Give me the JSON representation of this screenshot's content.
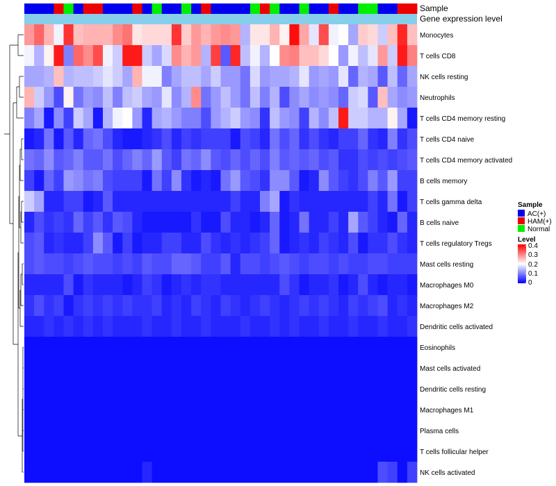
{
  "chart_data": {
    "type": "heatmap",
    "title": "",
    "annotations": {
      "sample_label": "Sample",
      "gene_label": "Gene expression level",
      "sample_groups": [
        "AC(+)",
        "AC(+)",
        "AC(+)",
        "HAM(+)",
        "Normal",
        "AC(+)",
        "HAM(+)",
        "HAM(+)",
        "AC(+)",
        "AC(+)",
        "AC(+)",
        "HAM(+)",
        "AC(+)",
        "Normal",
        "AC(+)",
        "AC(+)",
        "Normal",
        "AC(+)",
        "HAM(+)",
        "AC(+)",
        "AC(+)",
        "AC(+)",
        "AC(+)",
        "Normal",
        "HAM(+)",
        "Normal",
        "AC(+)",
        "AC(+)",
        "Normal",
        "AC(+)",
        "AC(+)",
        "HAM(+)",
        "AC(+)",
        "AC(+)",
        "Normal",
        "Normal",
        "AC(+)",
        "AC(+)",
        "HAM(+)",
        "HAM(+)"
      ]
    },
    "rows": [
      "Monocytes",
      "T cells CD8",
      "NK cells resting",
      "Neutrophils",
      "T cells CD4 memory resting",
      "T cells CD4 naive",
      "T cells CD4 memory activated",
      "B cells memory",
      "T cells gamma delta",
      "B cells naive",
      "T cells regulatory  Tregs",
      "Mast cells resting",
      "Macrophages M0",
      "Macrophages M2",
      "Dendritic cells activated",
      "Eosinophils",
      "Mast cells activated",
      "Dendritic cells resting",
      "Macrophages M1",
      "Plasma cells",
      "T cells follicular helper",
      "NK cells activated"
    ],
    "legend": {
      "sample_title": "Sample",
      "groups": [
        {
          "label": "AC(+)",
          "color": "#0000ee"
        },
        {
          "label": "HAM(+)",
          "color": "#ee0000"
        },
        {
          "label": "Normal",
          "color": "#00ee00"
        }
      ],
      "level_title": "Level",
      "level_ticks": [
        "0.4",
        "0.3",
        "0.2",
        "0.1",
        "0"
      ],
      "range": [
        0,
        0.4
      ]
    },
    "colors": {
      "low": "#0000ff",
      "mid": "#ffffff",
      "high": "#ff0000",
      "gene_bar": "#87ceeb"
    },
    "values": [
      [
        0.28,
        0.32,
        0.26,
        0.19,
        0.36,
        0.25,
        0.26,
        0.26,
        0.26,
        0.29,
        0.31,
        0.22,
        0.23,
        0.23,
        0.23,
        0.36,
        0.24,
        0.28,
        0.26,
        0.28,
        0.29,
        0.28,
        0.14,
        0.22,
        0.22,
        0.26,
        0.21,
        0.39,
        0.27,
        0.18,
        0.34,
        0.19,
        0.2,
        0.13,
        0.24,
        0.23,
        0.16,
        0.25,
        0.37,
        0.25
      ],
      [
        0.19,
        0.14,
        0.21,
        0.38,
        0.1,
        0.32,
        0.29,
        0.34,
        0.19,
        0.16,
        0.38,
        0.38,
        0.16,
        0.13,
        0.17,
        0.29,
        0.26,
        0.28,
        0.14,
        0.35,
        0.07,
        0.37,
        0.15,
        0.19,
        0.14,
        0.2,
        0.29,
        0.3,
        0.25,
        0.25,
        0.23,
        0.2,
        0.12,
        0.19,
        0.15,
        0.18,
        0.28,
        0.16,
        0.38,
        0.3
      ],
      [
        0.13,
        0.13,
        0.14,
        0.25,
        0.14,
        0.15,
        0.15,
        0.16,
        0.18,
        0.16,
        0.13,
        0.26,
        0.19,
        0.19,
        0.1,
        0.13,
        0.15,
        0.15,
        0.13,
        0.16,
        0.12,
        0.12,
        0.09,
        0.17,
        0.12,
        0.13,
        0.13,
        0.14,
        0.18,
        0.12,
        0.13,
        0.12,
        0.18,
        0.08,
        0.14,
        0.13,
        0.07,
        0.15,
        0.08,
        0.13
      ],
      [
        0.26,
        0.16,
        0.12,
        0.06,
        0.21,
        0.09,
        0.12,
        0.11,
        0.15,
        0.1,
        0.15,
        0.16,
        0.13,
        0.12,
        0.18,
        0.11,
        0.14,
        0.29,
        0.09,
        0.12,
        0.15,
        0.12,
        0.09,
        0.15,
        0.1,
        0.14,
        0.06,
        0.11,
        0.13,
        0.11,
        0.12,
        0.11,
        0.08,
        0.16,
        0.17,
        0.07,
        0.25,
        0.13,
        0.11,
        0.12
      ],
      [
        0.1,
        0.13,
        0.02,
        0.11,
        0.05,
        0.16,
        0.13,
        0.02,
        0.14,
        0.19,
        0.2,
        0.12,
        0.03,
        0.13,
        0.14,
        0.12,
        0.1,
        0.1,
        0.06,
        0.12,
        0.14,
        0.16,
        0.12,
        0.11,
        0.04,
        0.15,
        0.12,
        0.11,
        0.05,
        0.14,
        0.11,
        0.15,
        0.38,
        0.16,
        0.16,
        0.14,
        0.14,
        0.21,
        0.13,
        0.02
      ],
      [
        0.02,
        0.03,
        0.09,
        0.02,
        0.07,
        0.03,
        0.08,
        0.09,
        0.06,
        0.03,
        0.02,
        0.02,
        0.03,
        0.04,
        0.06,
        0.03,
        0.05,
        0.04,
        0.05,
        0.05,
        0.05,
        0.02,
        0.06,
        0.05,
        0.03,
        0.09,
        0.06,
        0.08,
        0.04,
        0.06,
        0.04,
        0.03,
        0.05,
        0.05,
        0.08,
        0.04,
        0.03,
        0.1,
        0.04,
        0.06
      ],
      [
        0.09,
        0.08,
        0.11,
        0.07,
        0.08,
        0.1,
        0.07,
        0.07,
        0.09,
        0.06,
        0.08,
        0.1,
        0.08,
        0.12,
        0.07,
        0.05,
        0.09,
        0.08,
        0.11,
        0.07,
        0.06,
        0.08,
        0.06,
        0.08,
        0.06,
        0.1,
        0.07,
        0.08,
        0.07,
        0.08,
        0.06,
        0.07,
        0.04,
        0.04,
        0.06,
        0.05,
        0.06,
        0.05,
        0.06,
        0.07
      ],
      [
        0.05,
        0.02,
        0.08,
        0.05,
        0.12,
        0.11,
        0.09,
        0.1,
        0.06,
        0.05,
        0.05,
        0.05,
        0.02,
        0.09,
        0.05,
        0.11,
        0.04,
        0.02,
        0.03,
        0.02,
        0.09,
        0.12,
        0.07,
        0.06,
        0.04,
        0.11,
        0.11,
        0.07,
        0.02,
        0.03,
        0.11,
        0.07,
        0.05,
        0.04,
        0.06,
        0.1,
        0.07,
        0.12,
        0.05,
        0.05
      ],
      [
        0.16,
        0.13,
        0.03,
        0.03,
        0.05,
        0.05,
        0.02,
        0.03,
        0.07,
        0.03,
        0.03,
        0.03,
        0.03,
        0.03,
        0.03,
        0.03,
        0.03,
        0.03,
        0.03,
        0.03,
        0.03,
        0.05,
        0.03,
        0.03,
        0.1,
        0.13,
        0.02,
        0.04,
        0.03,
        0.03,
        0.03,
        0.03,
        0.03,
        0.03,
        0.03,
        0.05,
        0.03,
        0.09,
        0.02,
        0.05
      ],
      [
        0.03,
        0.06,
        0.04,
        0.05,
        0.04,
        0.08,
        0.05,
        0.07,
        0.04,
        0.07,
        0.06,
        0.03,
        0.02,
        0.02,
        0.02,
        0.02,
        0.02,
        0.04,
        0.02,
        0.02,
        0.06,
        0.03,
        0.03,
        0.02,
        0.03,
        0.08,
        0.02,
        0.03,
        0.09,
        0.03,
        0.03,
        0.05,
        0.03,
        0.13,
        0.07,
        0.05,
        0.03,
        0.02,
        0.08,
        0.03
      ],
      [
        0.06,
        0.07,
        0.03,
        0.04,
        0.03,
        0.03,
        0.05,
        0.11,
        0.07,
        0.02,
        0.05,
        0.02,
        0.03,
        0.03,
        0.05,
        0.05,
        0.03,
        0.03,
        0.06,
        0.04,
        0.03,
        0.04,
        0.03,
        0.04,
        0.05,
        0.08,
        0.02,
        0.03,
        0.04,
        0.03,
        0.05,
        0.04,
        0.03,
        0.06,
        0.02,
        0.04,
        0.04,
        0.06,
        0.04,
        0.03
      ],
      [
        0.06,
        0.07,
        0.06,
        0.06,
        0.05,
        0.06,
        0.07,
        0.06,
        0.06,
        0.05,
        0.06,
        0.05,
        0.07,
        0.06,
        0.06,
        0.08,
        0.08,
        0.07,
        0.05,
        0.05,
        0.07,
        0.03,
        0.06,
        0.06,
        0.05,
        0.06,
        0.07,
        0.06,
        0.05,
        0.06,
        0.06,
        0.05,
        0.06,
        0.05,
        0.05,
        0.06,
        0.06,
        0.05,
        0.05,
        0.05
      ],
      [
        0.03,
        0.03,
        0.03,
        0.03,
        0.06,
        0.02,
        0.04,
        0.03,
        0.03,
        0.03,
        0.02,
        0.03,
        0.05,
        0.04,
        0.02,
        0.03,
        0.04,
        0.03,
        0.04,
        0.04,
        0.03,
        0.03,
        0.03,
        0.03,
        0.03,
        0.03,
        0.06,
        0.04,
        0.02,
        0.03,
        0.03,
        0.04,
        0.02,
        0.03,
        0.06,
        0.03,
        0.02,
        0.03,
        0.03,
        0.02
      ],
      [
        0.04,
        0.06,
        0.04,
        0.05,
        0.02,
        0.04,
        0.05,
        0.04,
        0.05,
        0.04,
        0.05,
        0.04,
        0.04,
        0.05,
        0.03,
        0.04,
        0.03,
        0.05,
        0.04,
        0.03,
        0.05,
        0.04,
        0.03,
        0.04,
        0.05,
        0.04,
        0.03,
        0.04,
        0.05,
        0.04,
        0.05,
        0.04,
        0.03,
        0.05,
        0.04,
        0.05,
        0.06,
        0.03,
        0.04,
        0.03
      ],
      [
        0.03,
        0.03,
        0.04,
        0.03,
        0.04,
        0.03,
        0.04,
        0.03,
        0.04,
        0.03,
        0.03,
        0.03,
        0.04,
        0.03,
        0.03,
        0.04,
        0.03,
        0.03,
        0.04,
        0.03,
        0.03,
        0.03,
        0.04,
        0.03,
        0.03,
        0.04,
        0.03,
        0.04,
        0.03,
        0.03,
        0.04,
        0.03,
        0.03,
        0.04,
        0.03,
        0.03,
        0.04,
        0.03,
        0.03,
        0.04
      ],
      [
        0.01,
        0.01,
        0.01,
        0.01,
        0.01,
        0.01,
        0.01,
        0.01,
        0.01,
        0.01,
        0.01,
        0.01,
        0.01,
        0.01,
        0.01,
        0.01,
        0.01,
        0.01,
        0.01,
        0.01,
        0.01,
        0.01,
        0.01,
        0.01,
        0.01,
        0.01,
        0.01,
        0.01,
        0.01,
        0.01,
        0.01,
        0.01,
        0.01,
        0.01,
        0.01,
        0.01,
        0.01,
        0.01,
        0.01,
        0.01
      ],
      [
        0.01,
        0.01,
        0.01,
        0.01,
        0.01,
        0.01,
        0.01,
        0.01,
        0.01,
        0.01,
        0.01,
        0.01,
        0.01,
        0.01,
        0.01,
        0.01,
        0.01,
        0.01,
        0.01,
        0.01,
        0.01,
        0.01,
        0.01,
        0.01,
        0.01,
        0.01,
        0.01,
        0.01,
        0.01,
        0.01,
        0.01,
        0.01,
        0.01,
        0.01,
        0.01,
        0.01,
        0.01,
        0.01,
        0.01,
        0.01
      ],
      [
        0.01,
        0.01,
        0.01,
        0.01,
        0.01,
        0.01,
        0.01,
        0.01,
        0.01,
        0.01,
        0.01,
        0.01,
        0.01,
        0.01,
        0.01,
        0.01,
        0.01,
        0.01,
        0.01,
        0.01,
        0.01,
        0.01,
        0.01,
        0.01,
        0.01,
        0.01,
        0.01,
        0.01,
        0.01,
        0.01,
        0.01,
        0.01,
        0.01,
        0.01,
        0.01,
        0.01,
        0.01,
        0.01,
        0.01,
        0.01
      ],
      [
        0.01,
        0.01,
        0.01,
        0.01,
        0.01,
        0.01,
        0.01,
        0.01,
        0.01,
        0.01,
        0.01,
        0.01,
        0.01,
        0.01,
        0.01,
        0.01,
        0.01,
        0.01,
        0.01,
        0.01,
        0.01,
        0.01,
        0.01,
        0.01,
        0.01,
        0.01,
        0.01,
        0.01,
        0.01,
        0.01,
        0.01,
        0.01,
        0.01,
        0.01,
        0.01,
        0.01,
        0.01,
        0.01,
        0.01,
        0.01
      ],
      [
        0.01,
        0.01,
        0.01,
        0.01,
        0.01,
        0.01,
        0.01,
        0.01,
        0.01,
        0.01,
        0.01,
        0.01,
        0.01,
        0.01,
        0.01,
        0.01,
        0.01,
        0.01,
        0.01,
        0.01,
        0.01,
        0.01,
        0.01,
        0.01,
        0.01,
        0.01,
        0.01,
        0.01,
        0.01,
        0.01,
        0.01,
        0.01,
        0.01,
        0.01,
        0.01,
        0.01,
        0.01,
        0.01,
        0.01,
        0.01
      ],
      [
        0.01,
        0.01,
        0.01,
        0.01,
        0.01,
        0.01,
        0.01,
        0.01,
        0.01,
        0.01,
        0.01,
        0.01,
        0.01,
        0.01,
        0.01,
        0.01,
        0.01,
        0.01,
        0.01,
        0.01,
        0.01,
        0.01,
        0.01,
        0.01,
        0.01,
        0.01,
        0.01,
        0.01,
        0.01,
        0.01,
        0.01,
        0.01,
        0.01,
        0.01,
        0.01,
        0.01,
        0.01,
        0.01,
        0.01,
        0.01
      ],
      [
        0.01,
        0.01,
        0.01,
        0.01,
        0.01,
        0.01,
        0.01,
        0.01,
        0.01,
        0.01,
        0.01,
        0.01,
        0.03,
        0.01,
        0.01,
        0.01,
        0.01,
        0.01,
        0.01,
        0.01,
        0.01,
        0.01,
        0.01,
        0.01,
        0.01,
        0.01,
        0.01,
        0.01,
        0.01,
        0.01,
        0.01,
        0.01,
        0.01,
        0.01,
        0.01,
        0.01,
        0.06,
        0.05,
        0.01,
        0.05
      ]
    ]
  }
}
